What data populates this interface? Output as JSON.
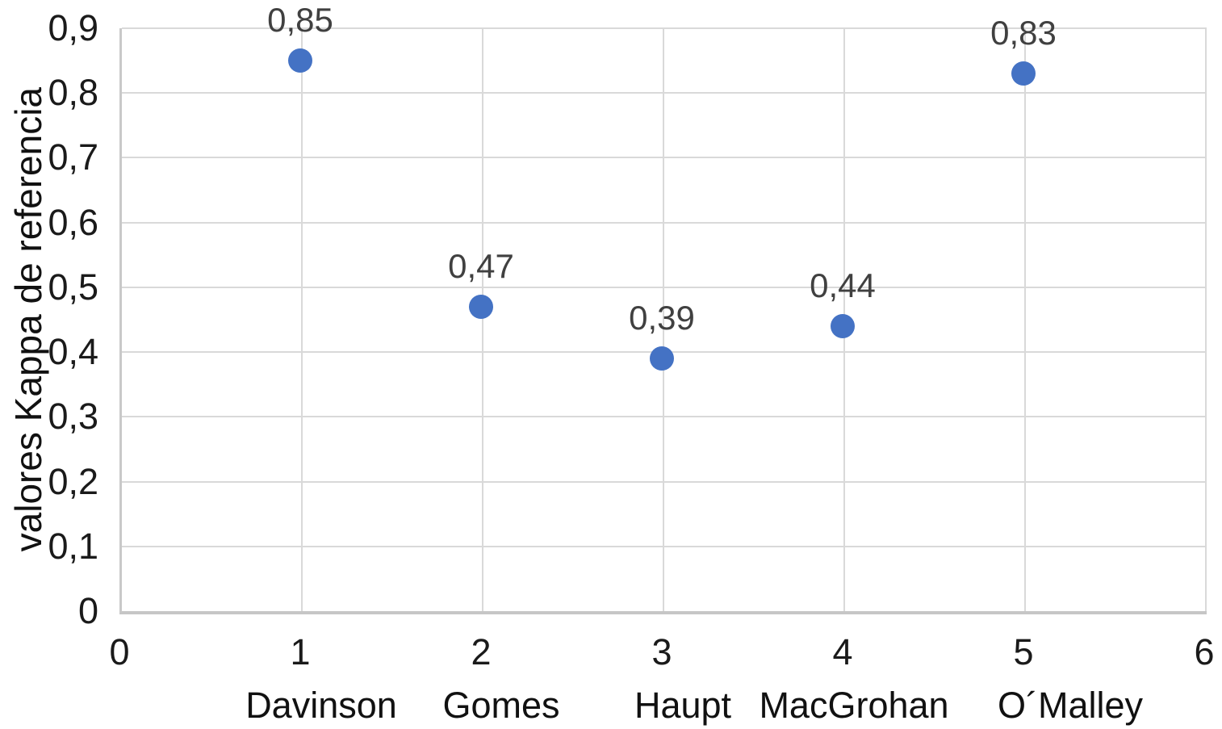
{
  "chart_data": {
    "type": "scatter",
    "title": "",
    "xlabel": "",
    "ylabel": "valores Kappa de referencia",
    "xlim": [
      0,
      6
    ],
    "ylim": [
      0,
      0.9
    ],
    "grid": true,
    "legend": false,
    "decimal_separator": ",",
    "x_ticks": [
      {
        "value": 0,
        "label": "0"
      },
      {
        "value": 1,
        "label": "1"
      },
      {
        "value": 2,
        "label": "2"
      },
      {
        "value": 3,
        "label": "3"
      },
      {
        "value": 4,
        "label": "4"
      },
      {
        "value": 5,
        "label": "5"
      },
      {
        "value": 6,
        "label": "6"
      }
    ],
    "y_ticks": [
      {
        "value": 0.0,
        "label": "0"
      },
      {
        "value": 0.1,
        "label": "0,1"
      },
      {
        "value": 0.2,
        "label": "0,2"
      },
      {
        "value": 0.3,
        "label": "0,3"
      },
      {
        "value": 0.4,
        "label": "0,4"
      },
      {
        "value": 0.5,
        "label": "0,5"
      },
      {
        "value": 0.6,
        "label": "0,6"
      },
      {
        "value": 0.7,
        "label": "0,7"
      },
      {
        "value": 0.8,
        "label": "0,8"
      },
      {
        "value": 0.9,
        "label": "0,9"
      }
    ],
    "series": [
      {
        "name": "valores Kappa",
        "points": [
          {
            "x": 1,
            "y": 0.85,
            "label": "0,85",
            "category": "Davinson"
          },
          {
            "x": 2,
            "y": 0.47,
            "label": "0,47",
            "category": "Gomes"
          },
          {
            "x": 3,
            "y": 0.39,
            "label": "0,39",
            "category": "Haupt"
          },
          {
            "x": 4,
            "y": 0.44,
            "label": "0,44",
            "category": "MacGrohan"
          },
          {
            "x": 5,
            "y": 0.83,
            "label": "0,83",
            "category": "O´Malley"
          }
        ]
      }
    ],
    "colors": {
      "marker": "#4472C4",
      "gridline": "#d9d9d9",
      "axis_line": "#c6c6c6",
      "tick_label": "#1a1a1a",
      "data_label": "#404040",
      "background": "#ffffff"
    }
  }
}
